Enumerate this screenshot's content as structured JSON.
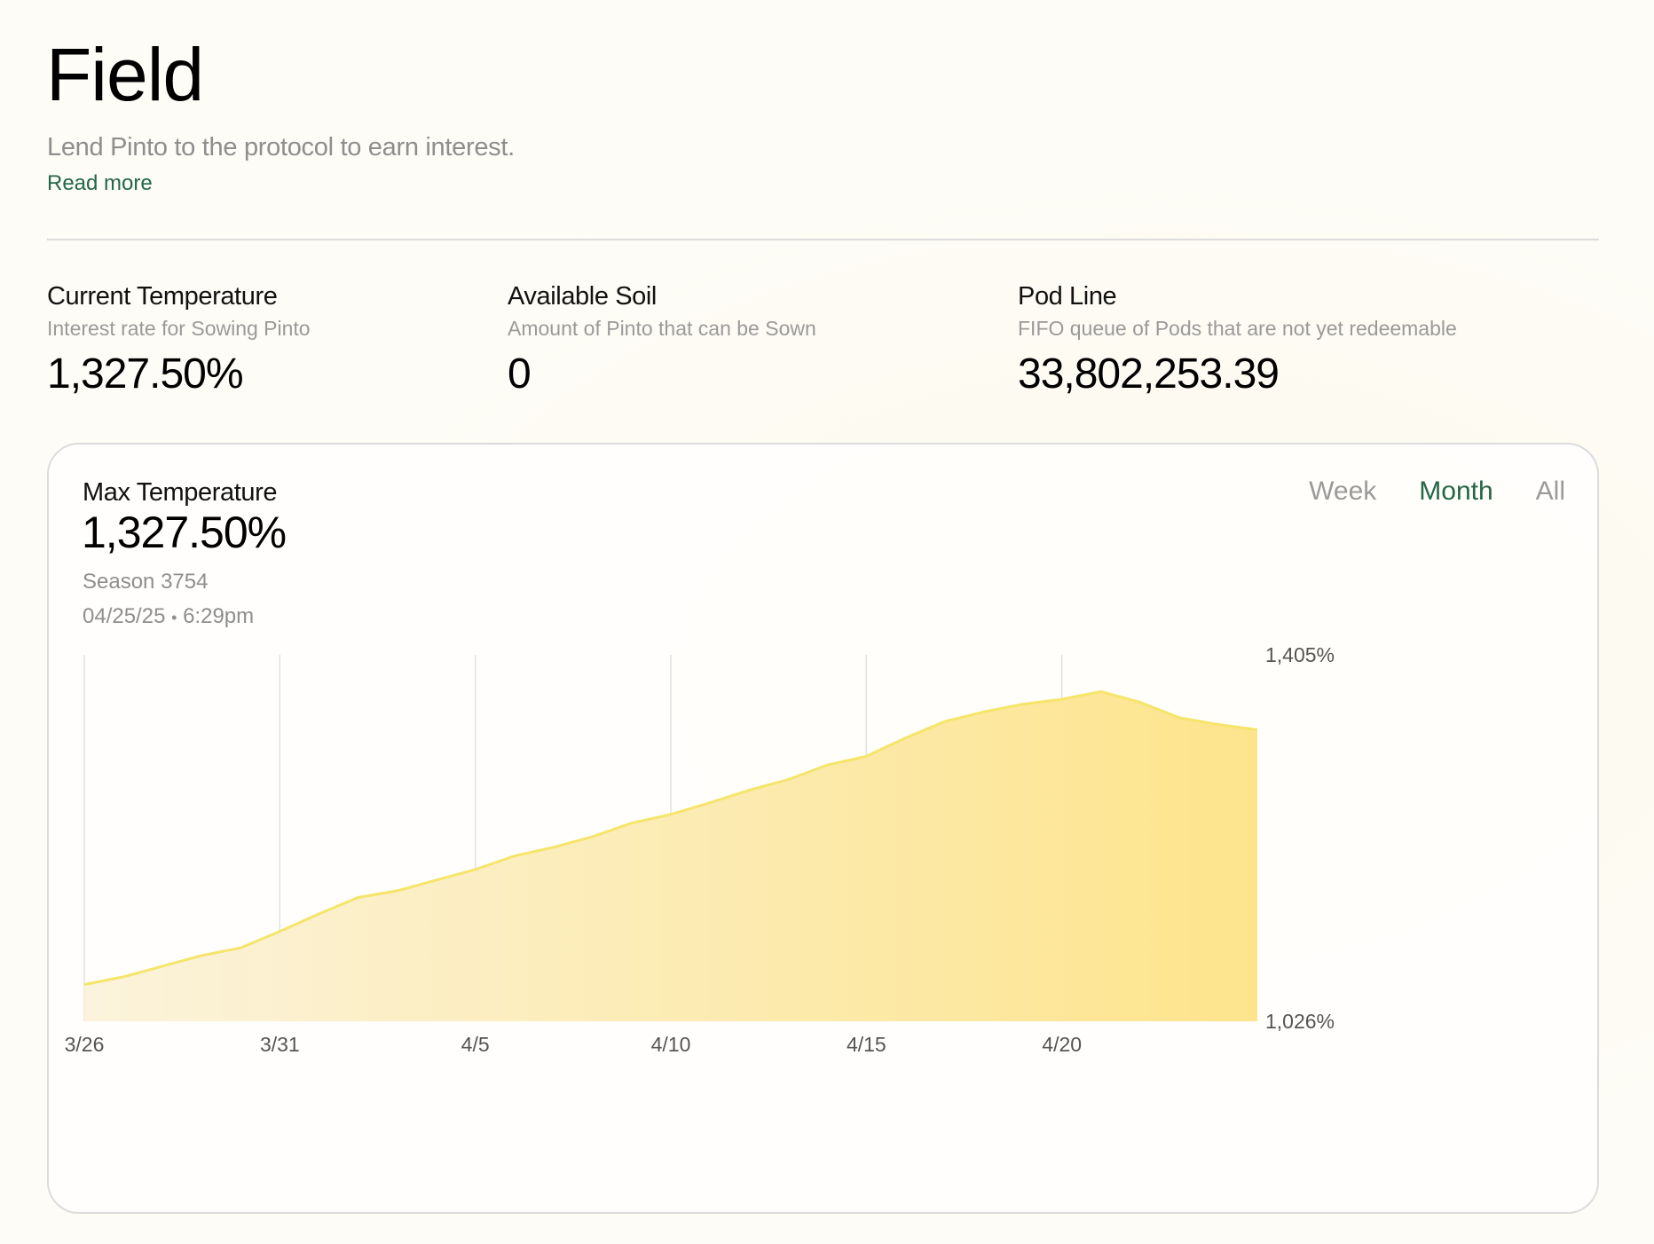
{
  "header": {
    "title": "Field",
    "subtitle": "Lend Pinto to the protocol to earn interest.",
    "read_more": "Read more"
  },
  "stats": [
    {
      "label": "Current Temperature",
      "description": "Interest rate for Sowing Pinto",
      "value": "1,327.50%"
    },
    {
      "label": "Available Soil",
      "description": "Amount of Pinto that can be Sown",
      "value": "0"
    },
    {
      "label": "Pod Line",
      "description": "FIFO queue of Pods that are not yet redeemable",
      "value": "33,802,253.39"
    }
  ],
  "card": {
    "title": "Max Temperature",
    "value": "1,327.50%",
    "season": "Season 3754",
    "date": "04/25/25",
    "time": "6:29pm",
    "separator": "•",
    "range_tabs": [
      "Week",
      "Month",
      "All"
    ],
    "active_tab": "Month"
  },
  "colors": {
    "accent_green": "#246645",
    "area_light": "#fbf3dc",
    "area_dark": "#fde48c",
    "line": "#f5e56a"
  },
  "chart_data": {
    "type": "area",
    "x_tick_labels": [
      "3/26",
      "3/31",
      "4/5",
      "4/10",
      "4/15",
      "4/20"
    ],
    "x_day_range": [
      0,
      30
    ],
    "x_tick_days": [
      0,
      5,
      10,
      15,
      20,
      25
    ],
    "y_tick_labels": [
      "1,405%",
      "1,026%"
    ],
    "ylim": [
      1026,
      1405
    ],
    "grid_vertical": true,
    "points": [
      [
        0,
        1064
      ],
      [
        1,
        1072
      ],
      [
        2,
        1083
      ],
      [
        3,
        1094
      ],
      [
        4,
        1102
      ],
      [
        5,
        1119
      ],
      [
        6,
        1137
      ],
      [
        7,
        1154
      ],
      [
        8,
        1161
      ],
      [
        9,
        1172
      ],
      [
        10,
        1183
      ],
      [
        11,
        1197
      ],
      [
        12,
        1206
      ],
      [
        13,
        1217
      ],
      [
        14,
        1231
      ],
      [
        15,
        1240
      ],
      [
        16,
        1252
      ],
      [
        17,
        1265
      ],
      [
        18,
        1276
      ],
      [
        19,
        1291
      ],
      [
        20,
        1300
      ],
      [
        21,
        1319
      ],
      [
        22,
        1336
      ],
      [
        23,
        1346
      ],
      [
        24,
        1354
      ],
      [
        25,
        1359
      ],
      [
        26,
        1367
      ],
      [
        27,
        1356
      ],
      [
        28,
        1340
      ],
      [
        29,
        1333
      ],
      [
        30,
        1327.5
      ]
    ]
  }
}
